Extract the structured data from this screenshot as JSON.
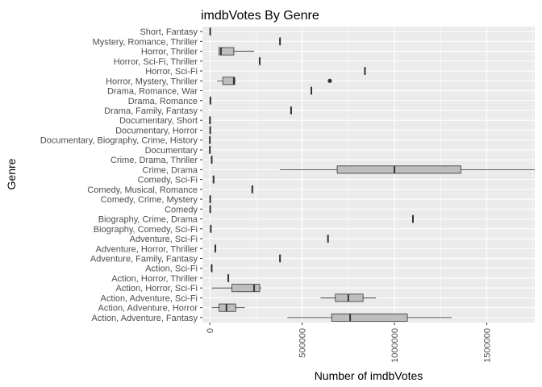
{
  "chart_data": {
    "type": "boxplot",
    "orientation": "horizontal",
    "title": "imdbVotes By Genre",
    "xlabel": "Number of imdbVotes",
    "ylabel": "Genre",
    "xlim": [
      -40000,
      1760000
    ],
    "x_ticks": [
      0,
      500000,
      1000000,
      1500000
    ],
    "x_tick_labels": [
      "0",
      "500000",
      "1000000",
      "1500000"
    ],
    "x_tick_rotation": -90,
    "grid": true,
    "colors": {
      "panel": "#EBEBEB",
      "grid": "#FFFFFF",
      "box_fill": "#BEBEBE",
      "line": "#333333"
    },
    "categories": [
      "Action, Adventure, Fantasy",
      "Action, Adventure, Horror",
      "Action, Adventure, Sci-Fi",
      "Action, Horror, Sci-Fi",
      "Action, Horror, Thriller",
      "Action, Sci-Fi",
      "Adventure, Family, Fantasy",
      "Adventure, Horror, Thriller",
      "Adventure, Sci-Fi",
      "Biography, Comedy, Sci-Fi",
      "Biography, Crime, Drama",
      "Comedy",
      "Comedy, Crime, Mystery",
      "Comedy, Musical, Romance",
      "Comedy, Sci-Fi",
      "Crime, Drama",
      "Crime, Drama, Thriller",
      "Documentary",
      "Documentary, Biography, Crime, History",
      "Documentary, Horror",
      "Documentary, Short",
      "Drama, Family, Fantasy",
      "Drama, Romance",
      "Drama, Romance, War",
      "Horror, Mystery, Thriller",
      "Horror, Sci-Fi",
      "Horror, Sci-Fi, Thriller",
      "Horror, Thriller",
      "Mystery, Romance, Thriller",
      "Short, Fantasy"
    ],
    "boxes": [
      {
        "min": 420000,
        "q1": 660000,
        "median": 760000,
        "q3": 1070000,
        "max": 1310000,
        "outliers": []
      },
      {
        "min": 10000,
        "q1": 50000,
        "median": 90000,
        "q3": 140000,
        "max": 190000,
        "outliers": []
      },
      {
        "min": 600000,
        "q1": 680000,
        "median": 750000,
        "q3": 830000,
        "max": 900000,
        "outliers": []
      },
      {
        "min": 10000,
        "q1": 120000,
        "median": 240000,
        "q3": 270000,
        "max": 280000,
        "outliers": []
      },
      {
        "min": 100000,
        "q1": 100000,
        "median": 100000,
        "q3": 100000,
        "max": 100000,
        "outliers": []
      },
      {
        "min": 10000,
        "q1": 10000,
        "median": 10000,
        "q3": 10000,
        "max": 10000,
        "outliers": []
      },
      {
        "min": 380000,
        "q1": 380000,
        "median": 380000,
        "q3": 380000,
        "max": 380000,
        "outliers": []
      },
      {
        "min": 30000,
        "q1": 30000,
        "median": 30000,
        "q3": 30000,
        "max": 30000,
        "outliers": []
      },
      {
        "min": 640000,
        "q1": 640000,
        "median": 640000,
        "q3": 640000,
        "max": 640000,
        "outliers": []
      },
      {
        "min": 5000,
        "q1": 5000,
        "median": 5000,
        "q3": 5000,
        "max": 5000,
        "outliers": []
      },
      {
        "min": 1100000,
        "q1": 1100000,
        "median": 1100000,
        "q3": 1100000,
        "max": 1100000,
        "outliers": []
      },
      {
        "min": 2000,
        "q1": 2000,
        "median": 2000,
        "q3": 2000,
        "max": 2000,
        "outliers": []
      },
      {
        "min": 2000,
        "q1": 2000,
        "median": 2000,
        "q3": 2000,
        "max": 2000,
        "outliers": []
      },
      {
        "min": 230000,
        "q1": 230000,
        "median": 230000,
        "q3": 230000,
        "max": 230000,
        "outliers": []
      },
      {
        "min": 20000,
        "q1": 20000,
        "median": 20000,
        "q3": 20000,
        "max": 20000,
        "outliers": []
      },
      {
        "min": 380000,
        "q1": 690000,
        "median": 1000000,
        "q3": 1360000,
        "max": 1760000,
        "outliers": []
      },
      {
        "min": 10000,
        "q1": 10000,
        "median": 10000,
        "q3": 10000,
        "max": 10000,
        "outliers": []
      },
      {
        "min": 0,
        "q1": 0,
        "median": 0,
        "q3": 0,
        "max": 0,
        "outliers": []
      },
      {
        "min": 0,
        "q1": 0,
        "median": 0,
        "q3": 0,
        "max": 0,
        "outliers": []
      },
      {
        "min": 2000,
        "q1": 2000,
        "median": 2000,
        "q3": 2000,
        "max": 2000,
        "outliers": []
      },
      {
        "min": 500,
        "q1": 500,
        "median": 500,
        "q3": 500,
        "max": 500,
        "outliers": []
      },
      {
        "min": 440000,
        "q1": 440000,
        "median": 440000,
        "q3": 440000,
        "max": 440000,
        "outliers": []
      },
      {
        "min": 3000,
        "q1": 3000,
        "median": 3000,
        "q3": 3000,
        "max": 3000,
        "outliers": []
      },
      {
        "min": 550000,
        "q1": 550000,
        "median": 550000,
        "q3": 550000,
        "max": 550000,
        "outliers": []
      },
      {
        "min": 40000,
        "q1": 70000,
        "median": 130000,
        "q3": 135000,
        "max": 140000,
        "outliers": [
          650000
        ]
      },
      {
        "min": 840000,
        "q1": 840000,
        "median": 840000,
        "q3": 840000,
        "max": 840000,
        "outliers": []
      },
      {
        "min": 270000,
        "q1": 270000,
        "median": 270000,
        "q3": 270000,
        "max": 270000,
        "outliers": []
      },
      {
        "min": 50000,
        "q1": 50000,
        "median": 60000,
        "q3": 130000,
        "max": 240000,
        "outliers": []
      },
      {
        "min": 380000,
        "q1": 380000,
        "median": 380000,
        "q3": 380000,
        "max": 380000,
        "outliers": []
      },
      {
        "min": 2000,
        "q1": 2000,
        "median": 2000,
        "q3": 2000,
        "max": 2000,
        "outliers": []
      }
    ]
  }
}
